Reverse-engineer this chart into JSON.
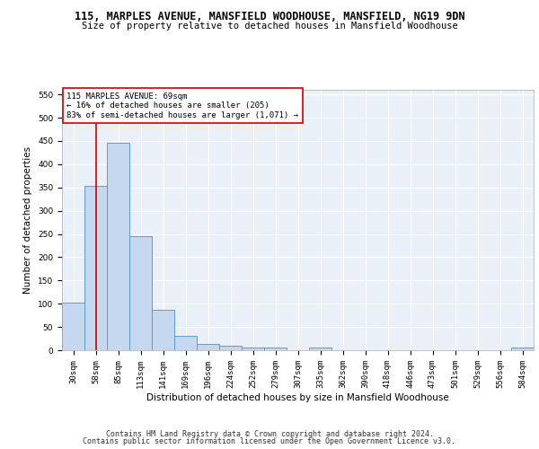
{
  "title": "115, MARPLES AVENUE, MANSFIELD WOODHOUSE, MANSFIELD, NG19 9DN",
  "subtitle": "Size of property relative to detached houses in Mansfield Woodhouse",
  "xlabel": "Distribution of detached houses by size in Mansfield Woodhouse",
  "ylabel": "Number of detached properties",
  "footer1": "Contains HM Land Registry data © Crown copyright and database right 2024.",
  "footer2": "Contains public sector information licensed under the Open Government Licence v3.0.",
  "bin_labels": [
    "30sqm",
    "58sqm",
    "85sqm",
    "113sqm",
    "141sqm",
    "169sqm",
    "196sqm",
    "224sqm",
    "252sqm",
    "279sqm",
    "307sqm",
    "335sqm",
    "362sqm",
    "390sqm",
    "418sqm",
    "446sqm",
    "473sqm",
    "501sqm",
    "529sqm",
    "556sqm",
    "584sqm"
  ],
  "bar_values": [
    103,
    353,
    447,
    246,
    87,
    30,
    14,
    9,
    6,
    5,
    0,
    5,
    0,
    0,
    0,
    0,
    0,
    0,
    0,
    0,
    5
  ],
  "bar_color": "#c5d8f0",
  "bar_edge_color": "#5b9bd5",
  "vline_x": 1.0,
  "vline_color": "#cc0000",
  "annotation_text": "115 MARPLES AVENUE: 69sqm\n← 16% of detached houses are smaller (205)\n83% of semi-detached houses are larger (1,071) →",
  "annotation_box_color": "#ffffff",
  "annotation_box_edge": "#cc0000",
  "ylim": [
    0,
    560
  ],
  "yticks": [
    0,
    50,
    100,
    150,
    200,
    250,
    300,
    350,
    400,
    450,
    500,
    550
  ],
  "background_color": "#eaf0f8",
  "grid_color": "#ffffff",
  "title_fontsize": 8.5,
  "subtitle_fontsize": 7.5,
  "ylabel_fontsize": 7.5,
  "xlabel_fontsize": 7.5,
  "tick_fontsize": 6.5,
  "annotation_fontsize": 6.5,
  "footer_fontsize": 6.0
}
